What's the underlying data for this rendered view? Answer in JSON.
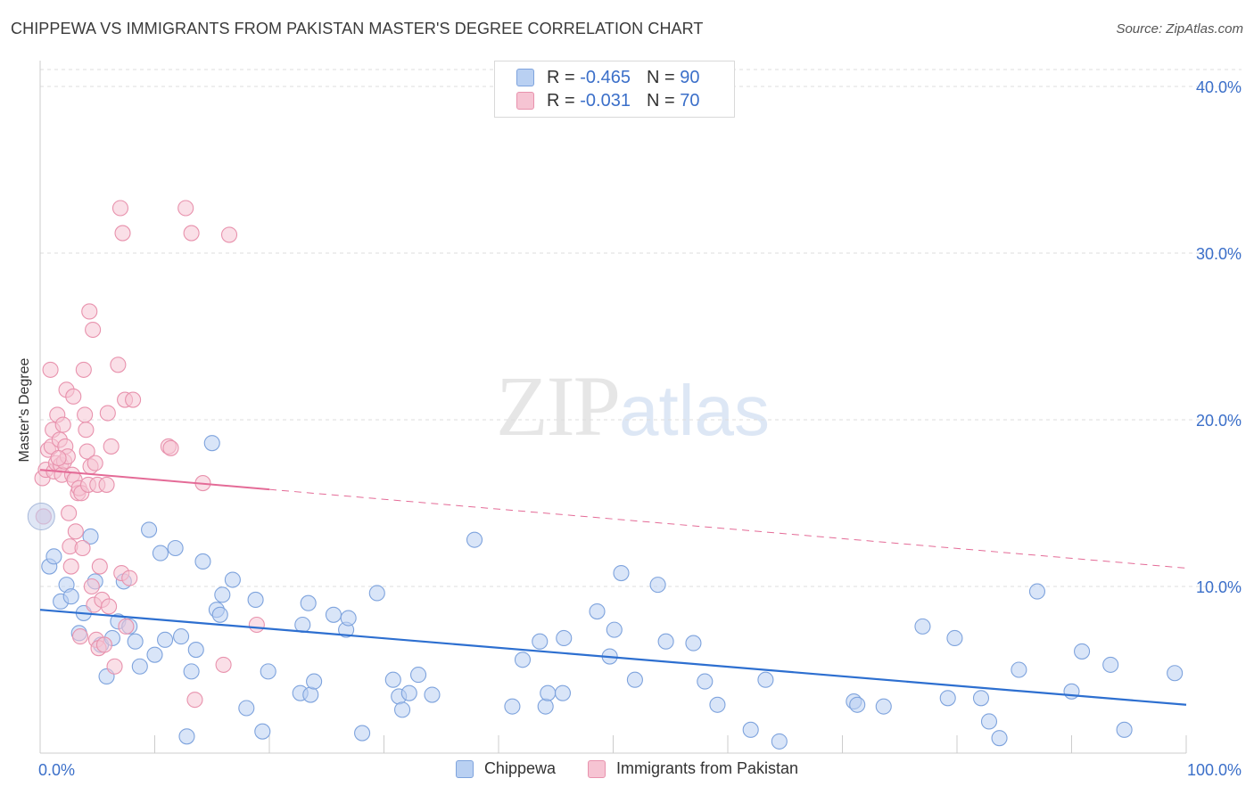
{
  "title": "CHIPPEWA VS IMMIGRANTS FROM PAKISTAN MASTER'S DEGREE CORRELATION CHART",
  "source": "Source: ZipAtlas.com",
  "watermark": {
    "zip": "ZIP",
    "atlas": "atlas"
  },
  "stats": [
    {
      "r_label": "R =",
      "r_value": "-0.465",
      "n_label": "N =",
      "n_value": "90",
      "fill": "#b9d0f2",
      "stroke": "#7ea3dd"
    },
    {
      "r_label": "R =",
      "r_value": "-0.031",
      "n_label": "N =",
      "n_value": "70",
      "fill": "#f6c4d3",
      "stroke": "#e892ad"
    }
  ],
  "chart_data": {
    "type": "scatter",
    "title": "CHIPPEWA VS IMMIGRANTS FROM PAKISTAN MASTER'S DEGREE CORRELATION CHART",
    "xlabel": "",
    "ylabel": "Master's Degree",
    "xlim": [
      0,
      100
    ],
    "ylim": [
      0,
      41
    ],
    "x_tick_labels": [
      "0.0%",
      "100.0%"
    ],
    "y_ticks": [
      10,
      20,
      30,
      40
    ],
    "y_tick_labels": [
      "10.0%",
      "20.0%",
      "30.0%",
      "40.0%"
    ],
    "grid": true,
    "series": [
      {
        "name": "Chippewa",
        "color": "#7ea3dd",
        "fill": "#b9d0f2",
        "trend": {
          "x0": 0,
          "y0": 8.6,
          "x1": 100,
          "y1": 2.9,
          "dashed_from": null
        },
        "points": [
          [
            0.3,
            14.2
          ],
          [
            0.8,
            11.2
          ],
          [
            1.2,
            11.8
          ],
          [
            1.8,
            9.1
          ],
          [
            2.3,
            10.1
          ],
          [
            2.7,
            9.4
          ],
          [
            3.4,
            7.2
          ],
          [
            3.8,
            8.4
          ],
          [
            4.4,
            13.0
          ],
          [
            4.8,
            10.3
          ],
          [
            5.3,
            6.5
          ],
          [
            5.8,
            4.6
          ],
          [
            6.3,
            6.9
          ],
          [
            6.8,
            7.9
          ],
          [
            7.3,
            10.3
          ],
          [
            7.8,
            7.6
          ],
          [
            8.3,
            6.7
          ],
          [
            8.7,
            5.2
          ],
          [
            9.5,
            13.4
          ],
          [
            10.0,
            5.9
          ],
          [
            10.5,
            12.0
          ],
          [
            10.9,
            6.8
          ],
          [
            11.8,
            12.3
          ],
          [
            12.3,
            7.0
          ],
          [
            12.8,
            1.0
          ],
          [
            13.2,
            4.9
          ],
          [
            13.6,
            6.2
          ],
          [
            14.2,
            11.5
          ],
          [
            15.0,
            18.6
          ],
          [
            15.4,
            8.6
          ],
          [
            15.7,
            8.3
          ],
          [
            15.9,
            9.5
          ],
          [
            16.8,
            10.4
          ],
          [
            18.0,
            2.7
          ],
          [
            18.8,
            9.2
          ],
          [
            19.4,
            1.3
          ],
          [
            19.9,
            4.9
          ],
          [
            22.7,
            3.6
          ],
          [
            22.9,
            7.7
          ],
          [
            23.4,
            9.0
          ],
          [
            23.6,
            3.5
          ],
          [
            23.9,
            4.3
          ],
          [
            25.6,
            8.3
          ],
          [
            26.7,
            7.4
          ],
          [
            26.9,
            8.1
          ],
          [
            28.1,
            1.2
          ],
          [
            29.4,
            9.6
          ],
          [
            30.8,
            4.4
          ],
          [
            31.3,
            3.4
          ],
          [
            31.6,
            2.6
          ],
          [
            32.2,
            3.6
          ],
          [
            33.0,
            4.7
          ],
          [
            34.2,
            3.5
          ],
          [
            37.9,
            12.8
          ],
          [
            41.2,
            2.8
          ],
          [
            42.1,
            5.6
          ],
          [
            43.6,
            6.7
          ],
          [
            44.1,
            2.8
          ],
          [
            44.3,
            3.6
          ],
          [
            45.6,
            3.6
          ],
          [
            45.7,
            6.9
          ],
          [
            48.6,
            8.5
          ],
          [
            49.7,
            5.8
          ],
          [
            50.1,
            7.4
          ],
          [
            50.7,
            10.8
          ],
          [
            51.9,
            4.4
          ],
          [
            53.9,
            10.1
          ],
          [
            54.6,
            6.7
          ],
          [
            57.0,
            6.6
          ],
          [
            58.0,
            4.3
          ],
          [
            59.1,
            2.9
          ],
          [
            62.0,
            1.4
          ],
          [
            63.3,
            4.4
          ],
          [
            64.5,
            0.7
          ],
          [
            71.0,
            3.1
          ],
          [
            71.3,
            2.9
          ],
          [
            73.6,
            2.8
          ],
          [
            77.0,
            7.6
          ],
          [
            79.2,
            3.3
          ],
          [
            79.8,
            6.9
          ],
          [
            82.1,
            3.3
          ],
          [
            82.8,
            1.9
          ],
          [
            83.7,
            0.9
          ],
          [
            85.4,
            5.0
          ],
          [
            87.0,
            9.7
          ],
          [
            90.0,
            3.7
          ],
          [
            90.9,
            6.1
          ],
          [
            93.4,
            5.3
          ],
          [
            94.6,
            1.4
          ],
          [
            99.0,
            4.8
          ]
        ]
      },
      {
        "name": "Immigrants from Pakistan",
        "color": "#e892ad",
        "fill": "#f6c4d3",
        "trend": {
          "x0": 0,
          "y0": 17.0,
          "x1": 100,
          "y1": 11.1,
          "dashed_from": 20
        },
        "points": [
          [
            0.2,
            16.5
          ],
          [
            0.3,
            14.2
          ],
          [
            0.5,
            17.0
          ],
          [
            0.7,
            18.2
          ],
          [
            0.9,
            23.0
          ],
          [
            1.0,
            18.4
          ],
          [
            1.1,
            19.4
          ],
          [
            1.2,
            16.9
          ],
          [
            1.4,
            17.4
          ],
          [
            1.5,
            20.3
          ],
          [
            1.7,
            18.8
          ],
          [
            1.8,
            17.3
          ],
          [
            1.9,
            16.7
          ],
          [
            2.0,
            19.7
          ],
          [
            2.1,
            17.5
          ],
          [
            2.2,
            18.4
          ],
          [
            2.3,
            21.8
          ],
          [
            2.4,
            17.8
          ],
          [
            2.5,
            14.4
          ],
          [
            2.6,
            12.4
          ],
          [
            2.7,
            11.2
          ],
          [
            2.8,
            16.7
          ],
          [
            2.9,
            21.4
          ],
          [
            3.0,
            16.4
          ],
          [
            3.1,
            13.3
          ],
          [
            3.3,
            15.6
          ],
          [
            3.4,
            15.9
          ],
          [
            3.5,
            7.0
          ],
          [
            3.6,
            15.6
          ],
          [
            3.7,
            12.3
          ],
          [
            3.8,
            23.0
          ],
          [
            3.9,
            20.3
          ],
          [
            4.0,
            19.4
          ],
          [
            4.1,
            18.1
          ],
          [
            4.2,
            16.1
          ],
          [
            4.3,
            26.5
          ],
          [
            4.4,
            17.2
          ],
          [
            4.5,
            10.0
          ],
          [
            4.6,
            25.4
          ],
          [
            4.7,
            8.9
          ],
          [
            4.8,
            17.4
          ],
          [
            4.9,
            6.8
          ],
          [
            5.0,
            16.1
          ],
          [
            5.1,
            6.3
          ],
          [
            5.2,
            11.2
          ],
          [
            5.4,
            9.2
          ],
          [
            5.6,
            6.5
          ],
          [
            5.8,
            16.1
          ],
          [
            5.9,
            20.4
          ],
          [
            6.0,
            8.8
          ],
          [
            6.2,
            18.4
          ],
          [
            6.5,
            5.2
          ],
          [
            6.8,
            23.3
          ],
          [
            7.0,
            32.7
          ],
          [
            7.1,
            10.8
          ],
          [
            7.2,
            31.2
          ],
          [
            7.4,
            21.2
          ],
          [
            7.5,
            7.6
          ],
          [
            7.8,
            10.5
          ],
          [
            8.1,
            21.2
          ],
          [
            11.2,
            18.4
          ],
          [
            11.4,
            18.3
          ],
          [
            12.7,
            32.7
          ],
          [
            13.2,
            31.2
          ],
          [
            14.2,
            16.2
          ],
          [
            16.0,
            5.3
          ],
          [
            16.5,
            31.1
          ],
          [
            18.9,
            7.7
          ],
          [
            13.5,
            3.2
          ],
          [
            1.6,
            17.7
          ]
        ]
      }
    ]
  },
  "legend": [
    {
      "label": "Chippewa",
      "fill": "#b9d0f2",
      "stroke": "#7ea3dd"
    },
    {
      "label": "Immigrants from Pakistan",
      "fill": "#f6c4d3",
      "stroke": "#e892ad"
    }
  ]
}
